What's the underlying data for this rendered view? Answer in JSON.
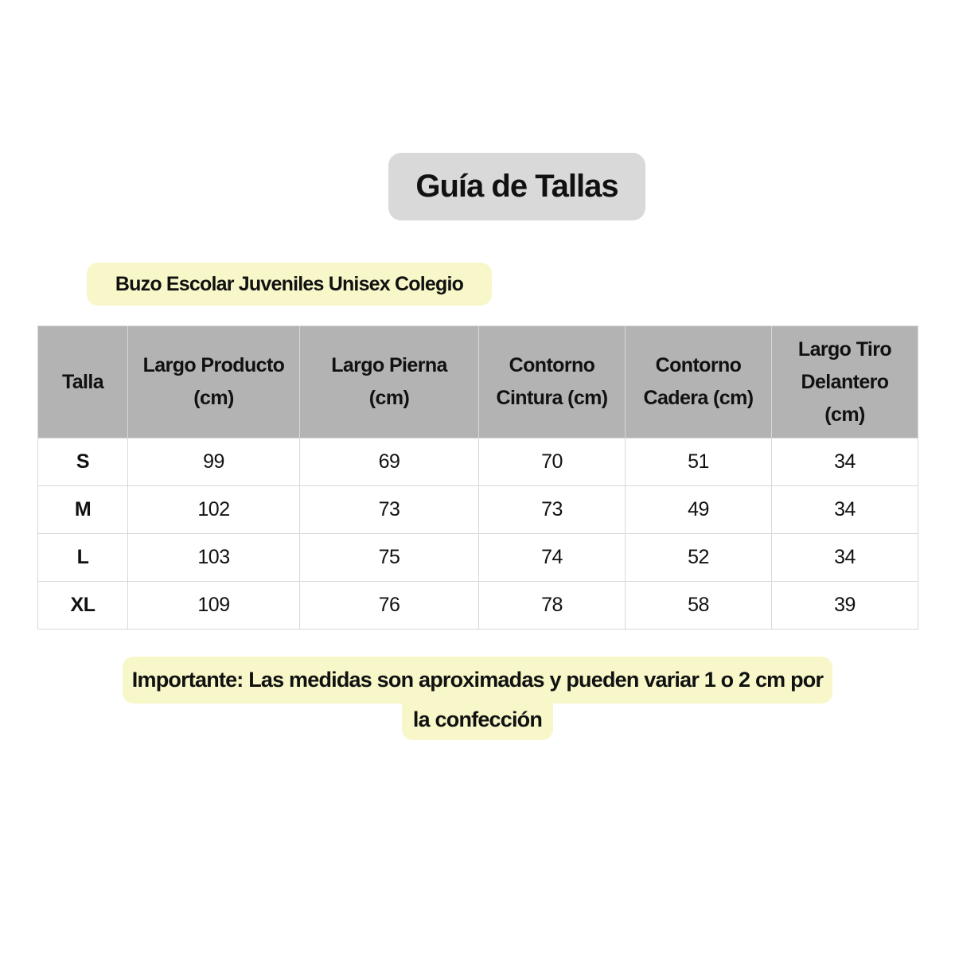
{
  "title": "Guía de Tallas",
  "subtitle": "Buzo Escolar Juveniles Unisex Colegio",
  "table": {
    "headers": [
      [
        "Talla"
      ],
      [
        "Largo Producto",
        "(cm)"
      ],
      [
        "Largo Pierna",
        "(cm)"
      ],
      [
        "Contorno",
        "Cintura (cm)"
      ],
      [
        "Contorno",
        "Cadera (cm)"
      ],
      [
        "Largo Tiro",
        "Delantero",
        "(cm)"
      ]
    ],
    "rows": [
      [
        "S",
        "99",
        "69",
        "70",
        "51",
        "34"
      ],
      [
        "M",
        "102",
        "73",
        "73",
        "49",
        "34"
      ],
      [
        "L",
        "103",
        "75",
        "74",
        "52",
        "34"
      ],
      [
        "XL",
        "109",
        "76",
        "78",
        "58",
        "39"
      ]
    ]
  },
  "note": {
    "line1": "Importante: Las medidas son aproximadas y pueden  variar 1 o 2 cm por",
    "line2": "la confección"
  },
  "colors": {
    "title_bg": "#d9d9d9",
    "highlight": "#f7f7c9",
    "header_bg": "#b3b3b3"
  }
}
